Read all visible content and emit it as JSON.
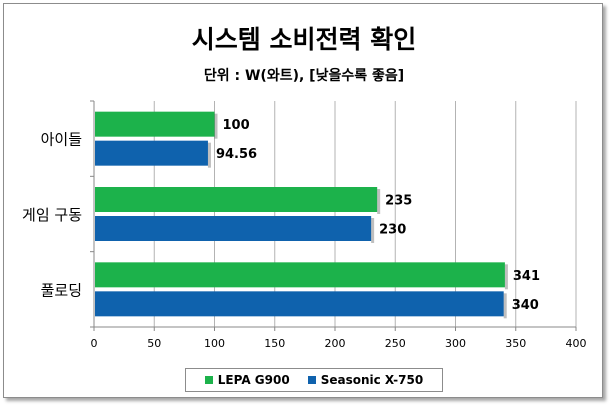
{
  "chart_data": {
    "type": "bar",
    "orientation": "horizontal",
    "title": "시스템 소비전력 확인",
    "subtitle": "단위 : W(와트), [낮을수록 좋음]",
    "categories": [
      "아이들",
      "게임 구동",
      "풀로딩"
    ],
    "series": [
      {
        "name": "LEPA G900",
        "color": "#1cb24b",
        "values": [
          100,
          235,
          341
        ],
        "labels": [
          "100",
          "235",
          "341"
        ]
      },
      {
        "name": "Seasonic X-750",
        "color": "#0f62ad",
        "values": [
          94.56,
          230,
          340
        ],
        "labels": [
          "94.56",
          "230",
          "340"
        ]
      }
    ],
    "x_ticks": [
      "0",
      "50",
      "100",
      "150",
      "200",
      "250",
      "300",
      "350",
      "400"
    ],
    "xlim": [
      0,
      400
    ],
    "grid": true,
    "legend_position": "bottom"
  }
}
